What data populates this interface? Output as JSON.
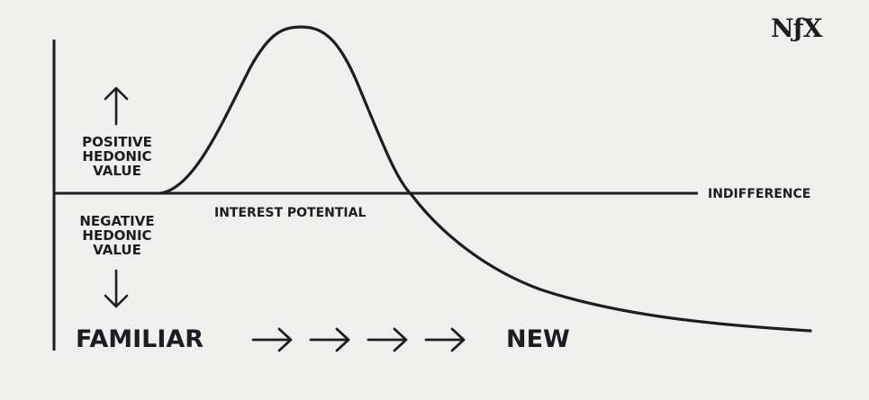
{
  "logo": {
    "text": "NƒX"
  },
  "axis_labels": {
    "positive": [
      "POSITIVE",
      "HEDONIC",
      "VALUE"
    ],
    "negative": [
      "NEGATIVE",
      "HEDONIC",
      "VALUE"
    ]
  },
  "baseline_label": "INDIFFERENCE",
  "curve_label": "INTEREST POTENTIAL",
  "bottom": {
    "left": "FAMILIAR",
    "right": "NEW",
    "arrow_count": 4
  },
  "colors": {
    "ink": "#1c1c22",
    "background": "#efefed"
  }
}
